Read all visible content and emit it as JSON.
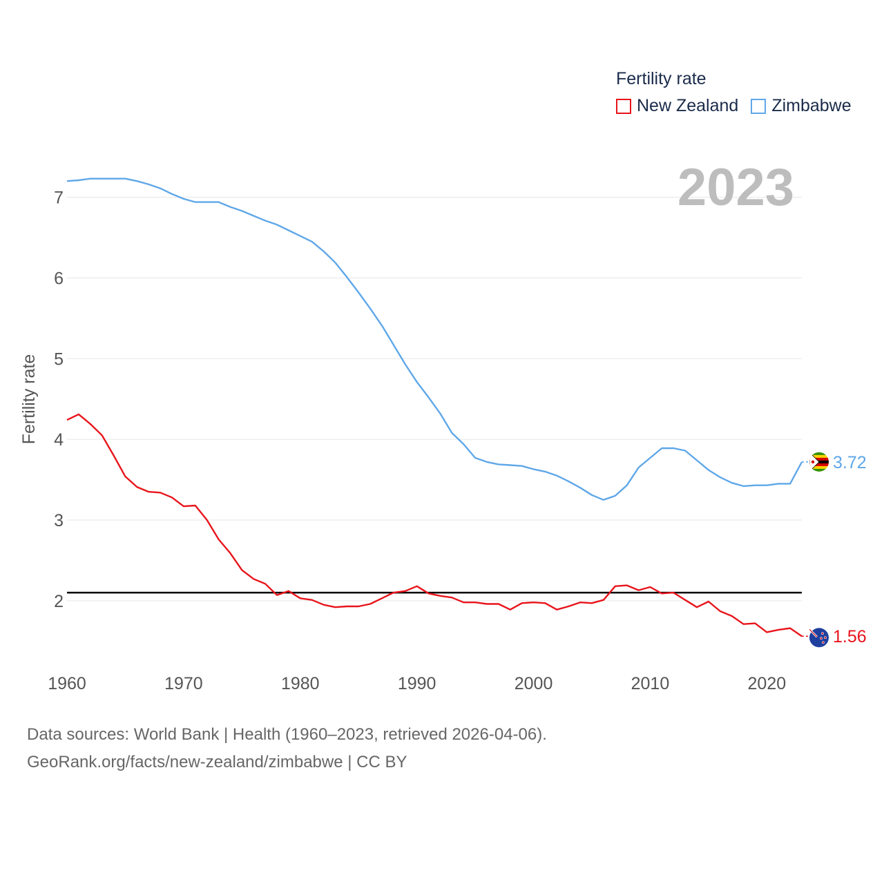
{
  "legend": {
    "title": "Fertility rate",
    "items": [
      {
        "name": "New Zealand",
        "color": "#e8141b"
      },
      {
        "name": "Zimbabwe",
        "color": "#5fa7e8"
      }
    ]
  },
  "year_label": "2023",
  "footer": {
    "line1": "Data sources: World Bank | Health (1960–2023, retrieved 2026-04-06).",
    "line2": "GeoRank.org/facts/new-zealand/zimbabwe | CC BY"
  },
  "chart_data": {
    "type": "line",
    "ylabel": "Fertility rate",
    "xlabel": "",
    "xlim": [
      1960,
      2023
    ],
    "ylim": [
      1.1,
      7.45
    ],
    "x_ticks": [
      1960,
      1970,
      1980,
      1990,
      2000,
      2010,
      2020
    ],
    "y_ticks": [
      2,
      3,
      4,
      5,
      6,
      7
    ],
    "reference_line": {
      "y": 2.1,
      "color": "#000000"
    },
    "x": [
      1960,
      1961,
      1962,
      1963,
      1964,
      1965,
      1966,
      1967,
      1968,
      1969,
      1970,
      1971,
      1972,
      1973,
      1974,
      1975,
      1976,
      1977,
      1978,
      1979,
      1980,
      1981,
      1982,
      1983,
      1984,
      1985,
      1986,
      1987,
      1988,
      1989,
      1990,
      1991,
      1992,
      1993,
      1994,
      1995,
      1996,
      1997,
      1998,
      1999,
      2000,
      2001,
      2002,
      2003,
      2004,
      2005,
      2006,
      2007,
      2008,
      2009,
      2010,
      2011,
      2012,
      2013,
      2014,
      2015,
      2016,
      2017,
      2018,
      2019,
      2020,
      2021,
      2022,
      2023
    ],
    "series": [
      {
        "name": "New Zealand",
        "color": "#e8141b",
        "end_label": "1.56",
        "values": [
          4.24,
          4.31,
          4.19,
          4.05,
          3.8,
          3.54,
          3.41,
          3.35,
          3.34,
          3.28,
          3.17,
          3.18,
          3.0,
          2.76,
          2.59,
          2.38,
          2.27,
          2.21,
          2.07,
          2.12,
          2.03,
          2.01,
          1.95,
          1.92,
          1.93,
          1.93,
          1.96,
          2.03,
          2.1,
          2.12,
          2.18,
          2.09,
          2.06,
          2.04,
          1.98,
          1.98,
          1.96,
          1.96,
          1.89,
          1.97,
          1.98,
          1.97,
          1.89,
          1.93,
          1.98,
          1.97,
          2.01,
          2.18,
          2.19,
          2.13,
          2.17,
          2.09,
          2.1,
          2.01,
          1.92,
          1.99,
          1.87,
          1.81,
          1.71,
          1.72,
          1.61,
          1.64,
          1.66,
          1.56
        ]
      },
      {
        "name": "Zimbabwe",
        "color": "#5fa7e8",
        "end_label": "3.72",
        "values": [
          7.2,
          7.21,
          7.23,
          7.23,
          7.23,
          7.23,
          7.2,
          7.16,
          7.11,
          7.04,
          6.98,
          6.94,
          6.94,
          6.94,
          6.88,
          6.83,
          6.77,
          6.71,
          6.66,
          6.59,
          6.52,
          6.45,
          6.33,
          6.19,
          6.01,
          5.82,
          5.62,
          5.41,
          5.17,
          4.93,
          4.71,
          4.52,
          4.32,
          4.08,
          3.94,
          3.77,
          3.72,
          3.69,
          3.68,
          3.67,
          3.63,
          3.6,
          3.55,
          3.48,
          3.4,
          3.31,
          3.25,
          3.3,
          3.43,
          3.65,
          3.77,
          3.89,
          3.89,
          3.86,
          3.74,
          3.62,
          3.53,
          3.46,
          3.42,
          3.43,
          3.43,
          3.45,
          3.45,
          3.72
        ]
      }
    ]
  }
}
